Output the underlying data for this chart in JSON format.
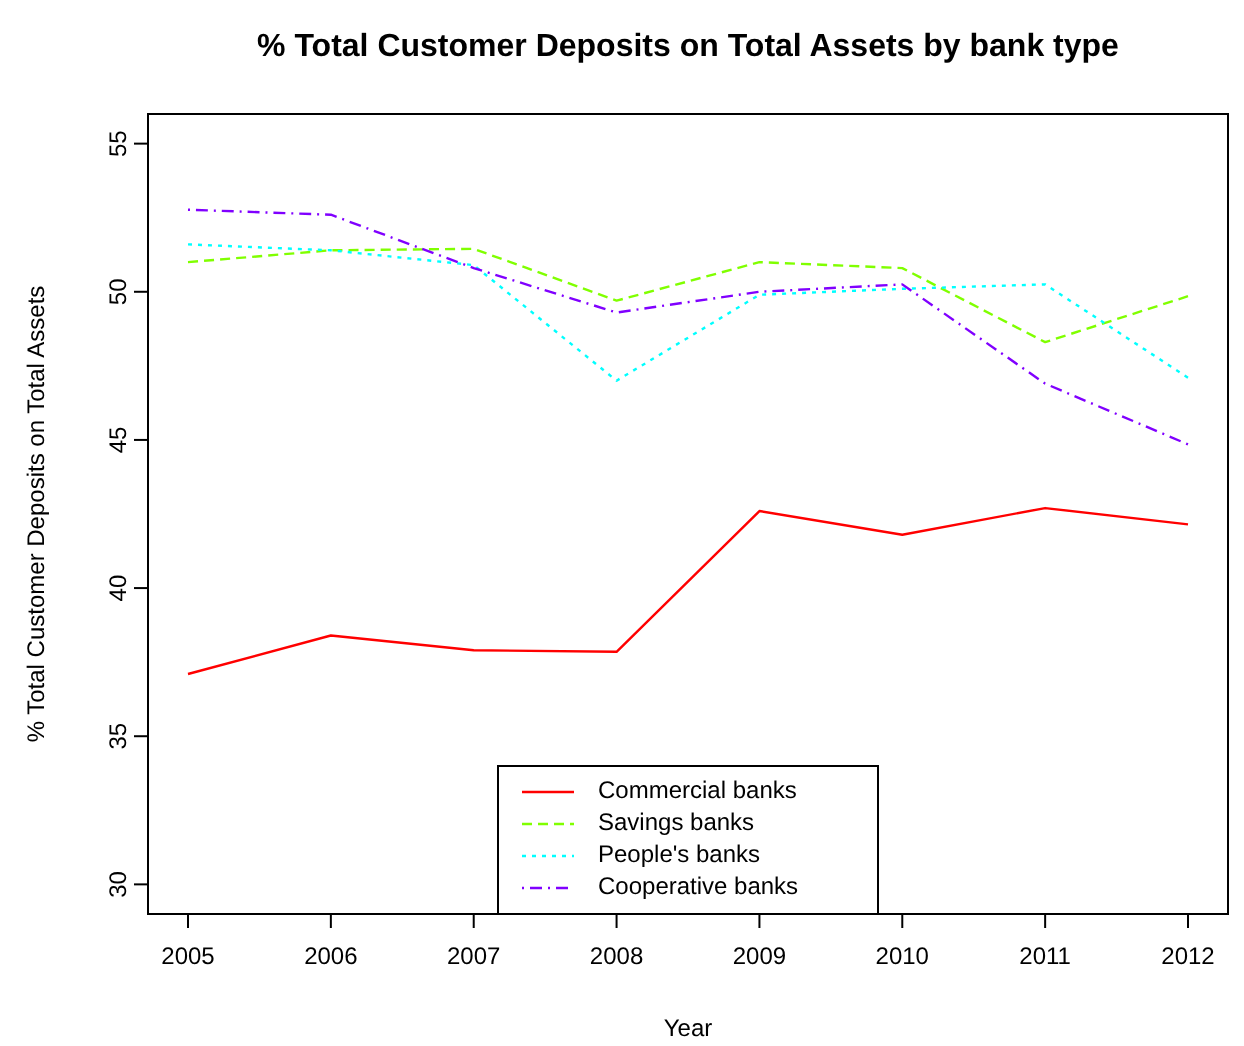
{
  "chart_data": {
    "type": "line",
    "title": "% Total Customer Deposits on Total Assets by bank type",
    "xlabel": "Year",
    "ylabel": "% Total Customer Deposits on Total Assets",
    "x": [
      2005,
      2006,
      2007,
      2008,
      2009,
      2010,
      2011,
      2012
    ],
    "xlim": [
      2004.72,
      2012.28
    ],
    "xticks": [
      2005,
      2006,
      2007,
      2008,
      2009,
      2010,
      2011,
      2012
    ],
    "ylim": [
      29,
      56
    ],
    "yticks": [
      30,
      35,
      40,
      45,
      50,
      55
    ],
    "grid": false,
    "legend": "bottom",
    "series": [
      {
        "name": "Commercial banks",
        "color": "#ff0000",
        "line_style": "solid",
        "values": [
          37.1,
          38.4,
          37.9,
          37.85,
          42.6,
          41.8,
          42.7,
          42.15
        ]
      },
      {
        "name": "Savings banks",
        "color": "#80ff00",
        "line_style": "dashed",
        "values": [
          51.0,
          51.4,
          51.45,
          49.7,
          51.0,
          50.8,
          48.3,
          49.85
        ]
      },
      {
        "name": "People's banks",
        "color": "#00ffff",
        "line_style": "dotted",
        "values": [
          51.6,
          51.4,
          50.9,
          47.0,
          49.9,
          50.1,
          50.25,
          47.1
        ]
      },
      {
        "name": "Cooperative banks",
        "color": "#8000ff",
        "line_style": "dashdot",
        "values": [
          52.77,
          52.6,
          50.8,
          49.3,
          50.0,
          50.25,
          46.9,
          44.85
        ]
      }
    ]
  }
}
